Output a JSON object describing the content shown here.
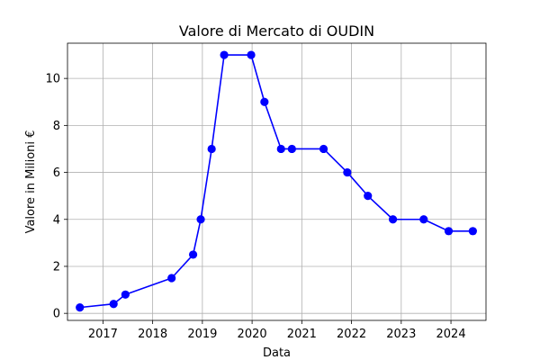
{
  "chart_data": {
    "type": "line",
    "title": "Valore di Mercato di OUDIN",
    "xlabel": "Data",
    "ylabel": "Valore in Milioni €",
    "x_ticks": [
      "2017",
      "2018",
      "2019",
      "2020",
      "2021",
      "2022",
      "2023",
      "2024"
    ],
    "y_ticks": [
      "0",
      "2",
      "4",
      "6",
      "8",
      "10"
    ],
    "xlim": [
      "2016-04-15",
      "2024-09-15"
    ],
    "ylim": [
      -0.3,
      11.5
    ],
    "grid": true,
    "series": [
      {
        "color": "#0000ff",
        "marker": "circle",
        "points": [
          {
            "date": "2016-07-15",
            "value": 0.25
          },
          {
            "date": "2017-03-20",
            "value": 0.4
          },
          {
            "date": "2017-06-15",
            "value": 0.8
          },
          {
            "date": "2018-05-20",
            "value": 1.5
          },
          {
            "date": "2018-10-25",
            "value": 2.5
          },
          {
            "date": "2018-12-20",
            "value": 4
          },
          {
            "date": "2019-03-10",
            "value": 7
          },
          {
            "date": "2019-06-10",
            "value": 11
          },
          {
            "date": "2019-12-25",
            "value": 11
          },
          {
            "date": "2020-04-01",
            "value": 9
          },
          {
            "date": "2020-08-01",
            "value": 7
          },
          {
            "date": "2020-10-20",
            "value": 7
          },
          {
            "date": "2021-06-10",
            "value": 7
          },
          {
            "date": "2021-12-01",
            "value": 6
          },
          {
            "date": "2022-05-01",
            "value": 5
          },
          {
            "date": "2022-11-01",
            "value": 4
          },
          {
            "date": "2023-06-15",
            "value": 4
          },
          {
            "date": "2023-12-15",
            "value": 3.5
          },
          {
            "date": "2024-06-10",
            "value": 3.5
          }
        ]
      }
    ]
  }
}
